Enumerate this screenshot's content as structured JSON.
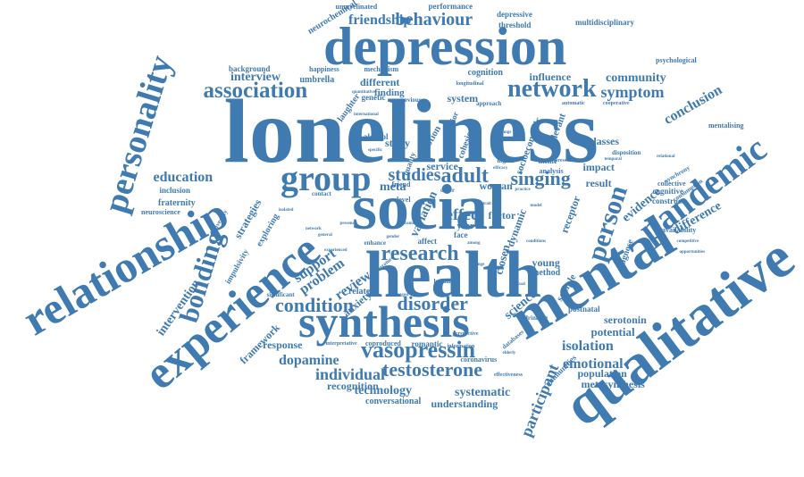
{
  "colors": {
    "word": "#3f7ab0",
    "background": "#ffffff"
  },
  "words": [
    {
      "id": "loneliness",
      "text": "loneliness"
    },
    {
      "id": "depression",
      "text": "depression"
    },
    {
      "id": "social",
      "text": "social"
    },
    {
      "id": "health",
      "text": "health"
    },
    {
      "id": "mental",
      "text": "mental"
    },
    {
      "id": "qualitative",
      "text": "qualitative"
    },
    {
      "id": "relationship",
      "text": "relationship"
    },
    {
      "id": "experience",
      "text": "experience"
    },
    {
      "id": "synthesis",
      "text": "synthesis"
    },
    {
      "id": "personality",
      "text": "personality"
    },
    {
      "id": "pandemic",
      "text": "pandemic"
    },
    {
      "id": "group",
      "text": "group"
    },
    {
      "id": "network",
      "text": "network"
    },
    {
      "id": "association",
      "text": "association"
    },
    {
      "id": "vasopressin",
      "text": "vasopressin"
    },
    {
      "id": "bonding",
      "text": "bonding"
    },
    {
      "id": "person",
      "text": "person"
    },
    {
      "id": "testosterone",
      "text": "testosterone"
    },
    {
      "id": "research",
      "text": "research"
    },
    {
      "id": "condition",
      "text": "condition"
    },
    {
      "id": "disorder",
      "text": "disorder"
    },
    {
      "id": "singing",
      "text": "singing"
    },
    {
      "id": "behaviour",
      "text": "behaviour"
    },
    {
      "id": "friendship",
      "text": "friendship"
    },
    {
      "id": "education",
      "text": "education"
    },
    {
      "id": "community",
      "text": "community"
    },
    {
      "id": "symptom",
      "text": "symptom"
    },
    {
      "id": "conclusion",
      "text": "conclusion"
    },
    {
      "id": "participant",
      "text": "participant"
    },
    {
      "id": "emotional",
      "text": "emotional"
    },
    {
      "id": "isolation",
      "text": "isolation"
    },
    {
      "id": "difference",
      "text": "difference"
    },
    {
      "id": "studies",
      "text": "studies"
    },
    {
      "id": "adult",
      "text": "adult"
    },
    {
      "id": "support",
      "text": "support"
    },
    {
      "id": "problem",
      "text": "problem"
    },
    {
      "id": "review",
      "text": "review"
    },
    {
      "id": "effect",
      "text": "effect"
    },
    {
      "id": "individual",
      "text": "individual"
    },
    {
      "id": "dopamine",
      "text": "dopamine"
    },
    {
      "id": "intervention",
      "text": "intervention"
    },
    {
      "id": "evidence",
      "text": "evidence"
    },
    {
      "id": "interview",
      "text": "interview"
    },
    {
      "id": "technology",
      "text": "technology"
    },
    {
      "id": "systematic",
      "text": "systematic"
    },
    {
      "id": "recognition",
      "text": "recognition"
    },
    {
      "id": "understanding",
      "text": "understanding"
    },
    {
      "id": "conversational",
      "text": "conversational"
    },
    {
      "id": "framework",
      "text": "framework"
    },
    {
      "id": "response",
      "text": "response"
    },
    {
      "id": "potential",
      "text": "potential"
    },
    {
      "id": "population",
      "text": "population"
    },
    {
      "id": "metasynthesis",
      "text": "metasynthesis"
    },
    {
      "id": "serotonin",
      "text": "serotonin"
    },
    {
      "id": "science",
      "text": "science"
    },
    {
      "id": "classes",
      "text": "classes"
    },
    {
      "id": "impact",
      "text": "impact"
    },
    {
      "id": "result",
      "text": "result"
    },
    {
      "id": "receptor",
      "text": "receptor"
    },
    {
      "id": "sample",
      "text": "sample"
    },
    {
      "id": "young",
      "text": "young"
    },
    {
      "id": "method",
      "text": "method"
    },
    {
      "id": "closen",
      "text": "closen"
    },
    {
      "id": "dynamic",
      "text": "dynamic"
    },
    {
      "id": "factor",
      "text": "factor"
    },
    {
      "id": "woman",
      "text": "woman"
    },
    {
      "id": "meta",
      "text": "meta"
    },
    {
      "id": "service",
      "text": "service"
    },
    {
      "id": "study",
      "text": "study"
    },
    {
      "id": "system",
      "text": "system"
    },
    {
      "id": "cognition",
      "text": "cognition"
    },
    {
      "id": "influence",
      "text": "influence"
    },
    {
      "id": "different",
      "text": "different"
    },
    {
      "id": "finding",
      "text": "finding"
    },
    {
      "id": "genetic",
      "text": "genetic"
    },
    {
      "id": "umbrella",
      "text": "umbrella"
    },
    {
      "id": "happiness",
      "text": "happiness"
    },
    {
      "id": "mechanism",
      "text": "mechanism"
    },
    {
      "id": "background",
      "text": "background"
    },
    {
      "id": "neurochemical",
      "text": "neurochemical"
    },
    {
      "id": "unmyelinated",
      "text": "unmyelinated"
    },
    {
      "id": "performance",
      "text": "performance"
    },
    {
      "id": "depressive",
      "text": "depressive"
    },
    {
      "id": "threshold",
      "text": "threshold"
    },
    {
      "id": "multidisciplinary",
      "text": "multidisciplinary"
    },
    {
      "id": "psychological",
      "text": "psychological"
    },
    {
      "id": "mentalising",
      "text": "mentalising"
    },
    {
      "id": "inclusion",
      "text": "inclusion"
    },
    {
      "id": "fraternity",
      "text": "fraternity"
    },
    {
      "id": "neuroscience",
      "text": "neuroscience"
    },
    {
      "id": "strategies",
      "text": "strategies"
    },
    {
      "id": "exploring",
      "text": "exploring"
    },
    {
      "id": "impulsivity",
      "text": "impulsivity"
    },
    {
      "id": "related",
      "text": "related"
    },
    {
      "id": "romantic",
      "text": "romantic"
    },
    {
      "id": "coproduced",
      "text": "coproduced"
    },
    {
      "id": "coronavirus",
      "text": "coronavirus"
    },
    {
      "id": "communities",
      "text": "communities"
    },
    {
      "id": "cognitive",
      "text": "cognitive"
    },
    {
      "id": "construct",
      "text": "construct"
    },
    {
      "id": "availability",
      "text": "availability"
    },
    {
      "id": "collective",
      "text": "collective"
    },
    {
      "id": "diagnose",
      "text": "diagnose"
    },
    {
      "id": "postnatal",
      "text": "postnatal"
    },
    {
      "id": "laughter",
      "text": "laughter"
    },
    {
      "id": "anxiety",
      "text": "anxiety"
    },
    {
      "id": "variation",
      "text": "variation"
    },
    {
      "id": "year",
      "text": "year"
    },
    {
      "id": "theme",
      "text": "theme"
    },
    {
      "id": "analysis",
      "text": "analysis"
    },
    {
      "id": "socioeconomic",
      "text": "socioeconomic"
    },
    {
      "id": "emotion",
      "text": "emotion"
    },
    {
      "id": "face",
      "text": "face"
    },
    {
      "id": "affect",
      "text": "affect"
    },
    {
      "id": "enhance",
      "text": "enhance"
    },
    {
      "id": "alcohol",
      "text": "alcohol"
    },
    {
      "id": "quality",
      "text": "quality"
    },
    {
      "id": "friend",
      "text": "friend"
    },
    {
      "id": "level",
      "text": "level"
    },
    {
      "id": "contact",
      "text": "contact"
    },
    {
      "id": "university",
      "text": "university"
    },
    {
      "id": "previous",
      "text": "previous"
    },
    {
      "id": "approach",
      "text": "approach"
    },
    {
      "id": "relevant",
      "text": "relevant"
    },
    {
      "id": "disposition",
      "text": "disposition"
    },
    {
      "id": "consumption",
      "text": "consumption"
    },
    {
      "id": "synchrony",
      "text": "synchrony"
    },
    {
      "id": "other",
      "text": "other"
    },
    {
      "id": "higher",
      "text": "higher"
    },
    {
      "id": "drinking",
      "text": "drinking"
    },
    {
      "id": "significant",
      "text": "significant"
    },
    {
      "id": "cooperative",
      "text": "cooperative"
    },
    {
      "id": "longitudinal",
      "text": "longitudinal"
    },
    {
      "id": "automatic",
      "text": "automatic"
    },
    {
      "id": "databases",
      "text": "databases"
    },
    {
      "id": "human",
      "text": "human"
    },
    {
      "id": "information",
      "text": "information"
    },
    {
      "id": "effectiveness",
      "text": "effectiveness"
    },
    {
      "id": "perspective",
      "text": "perspective"
    },
    {
      "id": "interpretative",
      "text": "interpretative"
    },
    {
      "id": "cohesion",
      "text": "cohesion"
    },
    {
      "id": "behavior",
      "text": "behavior"
    },
    {
      "id": "pressure",
      "text": "pressure"
    },
    {
      "id": "international",
      "text": "international"
    },
    {
      "id": "quantitative",
      "text": "quantitative"
    },
    {
      "id": "general",
      "text": "general"
    },
    {
      "id": "experienced",
      "text": "experienced"
    },
    {
      "id": "specific",
      "text": "specific"
    },
    {
      "id": "efficacy",
      "text": "efficacy"
    },
    {
      "id": "practice",
      "text": "practice"
    },
    {
      "id": "sexual",
      "text": "sexual"
    },
    {
      "id": "temporal",
      "text": "temporal"
    },
    {
      "id": "relational",
      "text": "relational"
    },
    {
      "id": "opportunities",
      "text": "opportunities"
    },
    {
      "id": "competitive",
      "text": "competitive"
    },
    {
      "id": "isolated",
      "text": "isolated"
    },
    {
      "id": "conditions",
      "text": "conditions"
    },
    {
      "id": "literature",
      "text": "literature"
    },
    {
      "id": "outcome",
      "text": "outcome"
    },
    {
      "id": "presence",
      "text": "presence"
    },
    {
      "id": "network_small",
      "text": "network"
    },
    {
      "id": "among",
      "text": "among"
    },
    {
      "id": "trait",
      "text": "trait"
    },
    {
      "id": "change",
      "text": "change"
    },
    {
      "id": "range",
      "text": "range"
    },
    {
      "id": "suggest",
      "text": "suggest"
    },
    {
      "id": "elderly",
      "text": "elderly"
    },
    {
      "id": "model",
      "text": "model"
    },
    {
      "id": "gender",
      "text": "gender"
    }
  ]
}
